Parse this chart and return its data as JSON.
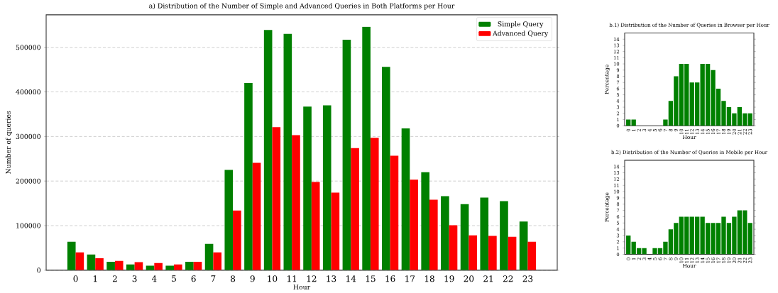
{
  "chart_data": [
    {
      "type": "bar",
      "title": "a) Distribution of the Number of Simple and Advanced Queries in Both Platforms per Hour",
      "xlabel": "Hour",
      "ylabel": "Number of queries",
      "categories": [
        "0",
        "1",
        "2",
        "3",
        "4",
        "5",
        "6",
        "7",
        "8",
        "9",
        "10",
        "11",
        "12",
        "13",
        "14",
        "15",
        "16",
        "17",
        "18",
        "19",
        "20",
        "21",
        "22",
        "23"
      ],
      "series": [
        {
          "name": "Simple Query",
          "color": "#008000",
          "values": [
            64000,
            35000,
            19000,
            13000,
            10000,
            10000,
            19000,
            59000,
            225000,
            420000,
            539000,
            530000,
            367000,
            370000,
            517000,
            546000,
            456000,
            318000,
            220000,
            166000,
            148000,
            163000,
            155000,
            109000
          ]
        },
        {
          "name": "Advanced Query",
          "color": "#ff0000",
          "values": [
            40000,
            27000,
            21000,
            18000,
            16000,
            13000,
            19000,
            40000,
            134000,
            241000,
            321000,
            303000,
            198000,
            174000,
            274000,
            297000,
            257000,
            203000,
            158000,
            101000,
            78000,
            77000,
            75000,
            64000
          ]
        }
      ],
      "ylim": [
        0,
        573000
      ],
      "yticks": [
        0,
        100000,
        200000,
        300000,
        400000,
        500000
      ],
      "grid": "y",
      "legend": "top right"
    },
    {
      "type": "bar",
      "title": "b.1) Distribution of the Number of Queries in Browser per Hour",
      "xlabel": "Hour",
      "ylabel": "Percentage",
      "categories": [
        "0",
        "1",
        "2",
        "3",
        "4",
        "5",
        "6",
        "7",
        "8",
        "9",
        "10",
        "11",
        "12",
        "13",
        "14",
        "15",
        "16",
        "17",
        "18",
        "19",
        "20",
        "21",
        "22",
        "23"
      ],
      "values": [
        1,
        1,
        0,
        0,
        0,
        0,
        0,
        1,
        4,
        8,
        10,
        10,
        7,
        7,
        10,
        10,
        9,
        6,
        4,
        3,
        2,
        3,
        2,
        2
      ],
      "color": "#008000",
      "ylim": [
        0,
        15
      ],
      "yticks": [
        0,
        1,
        2,
        3,
        4,
        5,
        6,
        7,
        8,
        9,
        10,
        11,
        12,
        13,
        14
      ]
    },
    {
      "type": "bar",
      "title": "b.2) Distribution of the Number of Queries in Mobile per Hour",
      "xlabel": "Hour",
      "ylabel": "Percentage",
      "categories": [
        "0",
        "1",
        "2",
        "3",
        "4",
        "5",
        "6",
        "7",
        "8",
        "9",
        "10",
        "11",
        "12",
        "13",
        "14",
        "15",
        "16",
        "17",
        "18",
        "19",
        "20",
        "21",
        "22",
        "23"
      ],
      "values": [
        3,
        2,
        1,
        1,
        0,
        1,
        1,
        2,
        4,
        5,
        6,
        6,
        6,
        6,
        6,
        5,
        5,
        5,
        6,
        5,
        6,
        7,
        7,
        5
      ],
      "color": "#008000",
      "ylim": [
        0,
        15
      ],
      "yticks": [
        0,
        1,
        2,
        3,
        4,
        5,
        6,
        7,
        8,
        9,
        10,
        11,
        12,
        13,
        14
      ]
    }
  ]
}
